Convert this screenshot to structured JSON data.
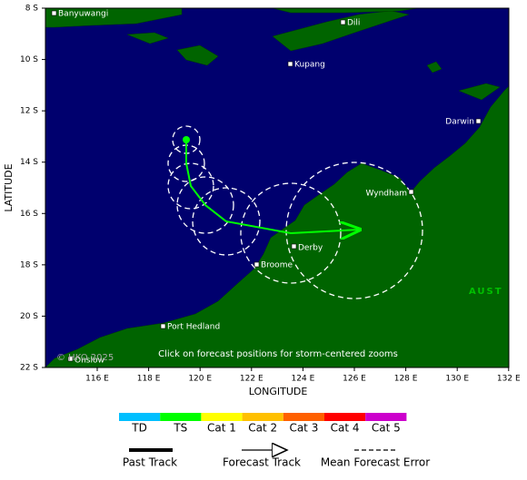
{
  "map": {
    "y_axis_title": "LATITUDE",
    "x_axis_title": "LONGITUDE",
    "lat_labels": [
      "8 S",
      "10 S",
      "12 S",
      "14 S",
      "16 S",
      "18 S",
      "20 S",
      "22 S"
    ],
    "lon_labels": [
      "116 E",
      "118 E",
      "120 E",
      "122 E",
      "124 E",
      "126 E",
      "128 E",
      "130 E",
      "132 E"
    ],
    "places": [
      "Banyuwangi",
      "Dili",
      "Kupang",
      "Darwin",
      "Wyndham",
      "Derby",
      "Broome",
      "Port Hedland",
      "Onslow"
    ],
    "region_label": "AUST",
    "note": "Click on forecast positions for storm-centered zooms",
    "credit": "© HKO 2025"
  },
  "legend": {
    "categories": [
      "TD",
      "TS",
      "Cat 1",
      "Cat 2",
      "Cat 3",
      "Cat 4",
      "Cat 5"
    ],
    "items": [
      "Past Track",
      "Forecast Track",
      "Mean Forecast Error"
    ]
  }
}
